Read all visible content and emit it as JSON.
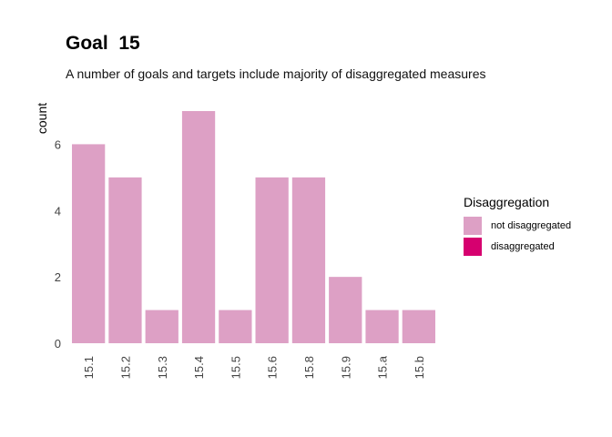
{
  "colors": {
    "not_disaggregated": "#dda0c5",
    "disaggregated": "#d6006f"
  },
  "chart_data": {
    "type": "bar",
    "title": "Goal  15",
    "subtitle": "A number of goals and targets include majority of disaggregated measures",
    "xlabel": "",
    "ylabel": "count",
    "categories": [
      "15.1",
      "15.2",
      "15.3",
      "15.4",
      "15.5",
      "15.6",
      "15.8",
      "15.9",
      "15.a",
      "15.b"
    ],
    "series": [
      {
        "name": "not disaggregated",
        "values": [
          6,
          5,
          1,
          7,
          1,
          5,
          5,
          2,
          1,
          1
        ]
      },
      {
        "name": "disaggregated",
        "values": [
          0,
          0,
          0,
          0,
          0,
          0,
          0,
          0,
          0,
          0
        ]
      }
    ],
    "yticks": [
      0,
      2,
      4,
      6
    ],
    "ylim": [
      0,
      7.2
    ],
    "grid": false,
    "legend": {
      "title": "Disaggregation",
      "placement": "right",
      "entries": [
        "not disaggregated",
        "disaggregated"
      ]
    }
  }
}
